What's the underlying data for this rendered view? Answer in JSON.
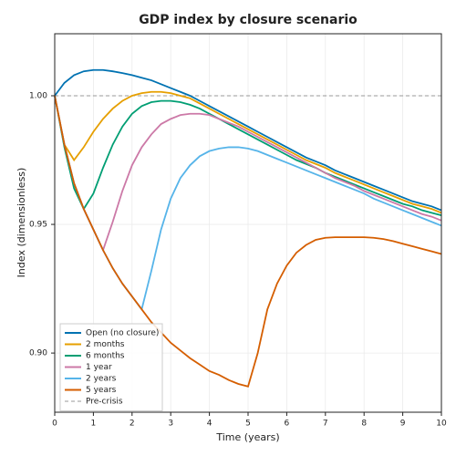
{
  "chart_data": {
    "type": "line",
    "title": "GDP index by closure scenario",
    "x_label": "Time (years)",
    "y_label": "Index (dimensionless)",
    "x": [
      0,
      0.25,
      0.5,
      0.75,
      1,
      1.25,
      1.5,
      1.75,
      2,
      2.25,
      2.5,
      2.75,
      3,
      3.25,
      3.5,
      3.75,
      4,
      4.25,
      4.5,
      4.75,
      5,
      5.25,
      5.5,
      5.75,
      6,
      6.25,
      6.5,
      6.75,
      7,
      7.25,
      7.5,
      7.75,
      8,
      8.25,
      8.5,
      8.75,
      9,
      9.25,
      9.5,
      9.75,
      10
    ],
    "series": [
      {
        "name": "Open (no closure)",
        "color": "#0072b2",
        "values": [
          1.0,
          1.005,
          1.008,
          1.0095,
          1.01,
          1.01,
          1.0095,
          1.0088,
          1.008,
          1.007,
          1.006,
          1.0045,
          1.003,
          1.0015,
          1.0,
          0.998,
          0.996,
          0.994,
          0.992,
          0.99,
          0.988,
          0.986,
          0.984,
          0.982,
          0.98,
          0.978,
          0.976,
          0.9745,
          0.973,
          0.971,
          0.9695,
          0.968,
          0.9665,
          0.965,
          0.9635,
          0.962,
          0.9605,
          0.959,
          0.958,
          0.957,
          0.9555
        ]
      },
      {
        "name": "2 months",
        "color": "#e69f00",
        "values": [
          1.0,
          0.981,
          0.975,
          0.98,
          0.986,
          0.991,
          0.995,
          0.998,
          1.0,
          1.001,
          1.0015,
          1.0015,
          1.001,
          1.0,
          0.999,
          0.997,
          0.995,
          0.993,
          0.991,
          0.989,
          0.987,
          0.985,
          0.983,
          0.981,
          0.979,
          0.977,
          0.975,
          0.9735,
          0.972,
          0.97,
          0.9685,
          0.967,
          0.9655,
          0.964,
          0.9625,
          0.961,
          0.9595,
          0.958,
          0.957,
          0.956,
          0.9545
        ]
      },
      {
        "name": "6 months",
        "color": "#009e73",
        "values": [
          1.0,
          0.98,
          0.964,
          0.956,
          0.962,
          0.972,
          0.981,
          0.988,
          0.993,
          0.996,
          0.9975,
          0.998,
          0.998,
          0.9975,
          0.9965,
          0.995,
          0.993,
          0.991,
          0.989,
          0.987,
          0.985,
          0.983,
          0.981,
          0.979,
          0.977,
          0.975,
          0.9735,
          0.972,
          0.97,
          0.9685,
          0.967,
          0.9655,
          0.964,
          0.9625,
          0.961,
          0.9595,
          0.958,
          0.957,
          0.9555,
          0.9545,
          0.9535
        ]
      },
      {
        "name": "1 year",
        "color": "#cc79a7",
        "values": [
          1.0,
          0.981,
          0.966,
          0.956,
          0.948,
          0.94,
          0.951,
          0.963,
          0.973,
          0.98,
          0.985,
          0.989,
          0.991,
          0.9925,
          0.993,
          0.993,
          0.9925,
          0.991,
          0.9895,
          0.988,
          0.986,
          0.984,
          0.982,
          0.98,
          0.978,
          0.976,
          0.974,
          0.972,
          0.97,
          0.968,
          0.9665,
          0.965,
          0.963,
          0.9615,
          0.96,
          0.9585,
          0.957,
          0.9555,
          0.954,
          0.953,
          0.9515
        ]
      },
      {
        "name": "2 years",
        "color": "#56b4e9",
        "values": [
          1.0,
          0.981,
          0.966,
          0.956,
          0.948,
          0.94,
          0.933,
          0.927,
          0.922,
          0.917,
          0.932,
          0.948,
          0.96,
          0.968,
          0.973,
          0.9765,
          0.9785,
          0.9795,
          0.98,
          0.98,
          0.9795,
          0.9785,
          0.977,
          0.9755,
          0.974,
          0.9725,
          0.971,
          0.9695,
          0.968,
          0.9665,
          0.965,
          0.9635,
          0.962,
          0.96,
          0.9585,
          0.957,
          0.9555,
          0.954,
          0.9525,
          0.951,
          0.9495
        ]
      },
      {
        "name": "5 years",
        "color": "#d55e00",
        "values": [
          1.0,
          0.981,
          0.966,
          0.956,
          0.948,
          0.94,
          0.933,
          0.927,
          0.922,
          0.917,
          0.912,
          0.908,
          0.904,
          0.901,
          0.898,
          0.8955,
          0.893,
          0.8915,
          0.8895,
          0.888,
          0.887,
          0.9,
          0.917,
          0.927,
          0.934,
          0.939,
          0.942,
          0.944,
          0.9448,
          0.945,
          0.945,
          0.945,
          0.945,
          0.9448,
          0.9443,
          0.9435,
          0.9425,
          0.9415,
          0.9405,
          0.9395,
          0.9385
        ]
      }
    ],
    "reference_line": {
      "name": "Pre-crisis",
      "value": 1,
      "color": "#999999"
    },
    "xlim": [
      0,
      10
    ],
    "xticks": [
      0,
      1,
      2,
      3,
      4,
      5,
      6,
      7,
      8,
      9,
      10
    ],
    "ylim": [
      0.877,
      1.0241
    ],
    "yticks": [
      {
        "value": 0.9,
        "label": "0.90"
      },
      {
        "value": 0.95,
        "label": "0.95"
      },
      {
        "value": 1,
        "label": "1.00"
      }
    ],
    "grid": true,
    "legend": "lower left"
  }
}
